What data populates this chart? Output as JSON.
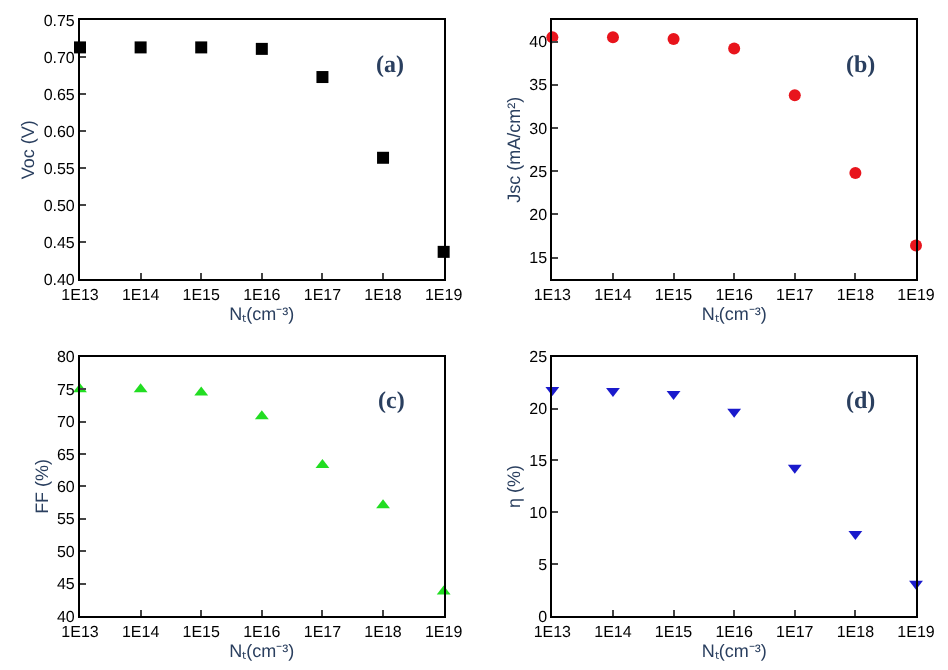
{
  "chart_data": [
    {
      "type": "scatter",
      "x": [
        10000000000000.0,
        100000000000000.0,
        1000000000000000.0,
        1e+16,
        1e+17,
        1e+18,
        1e+19
      ],
      "series": [
        {
          "color": "#000000",
          "values": [
            0.713,
            0.713,
            0.713,
            0.711,
            0.673,
            0.564,
            0.437
          ]
        }
      ],
      "marker": "square",
      "log": "x",
      "xlim": [
        10000000000000.0,
        1e+19
      ],
      "xticks": [
        {
          "value": 10000000000000.0,
          "label": "1E13"
        },
        {
          "value": 100000000000000.0,
          "label": "1E14"
        },
        {
          "value": 1000000000000000.0,
          "label": "1E15"
        },
        {
          "value": 1e+16,
          "label": "1E16"
        },
        {
          "value": 1e+17,
          "label": "1E17"
        },
        {
          "value": 1e+18,
          "label": "1E18"
        },
        {
          "value": 1e+19,
          "label": "1E19"
        }
      ],
      "ylim": [
        0.4,
        0.75
      ],
      "yticks": [
        {
          "value": 0.4,
          "label": "0.40"
        },
        {
          "value": 0.45,
          "label": "0.45"
        },
        {
          "value": 0.5,
          "label": "0.50"
        },
        {
          "value": 0.55,
          "label": "0.55"
        },
        {
          "value": 0.6,
          "label": "0.60"
        },
        {
          "value": 0.65,
          "label": "0.65"
        },
        {
          "value": 0.7,
          "label": "0.70"
        },
        {
          "value": 0.75,
          "label": "0.75"
        }
      ],
      "xlabel": "Nₜ(cm⁻³)",
      "ylabel": "Voc (V)",
      "annotations": [
        "(a)"
      ],
      "grid": false
    },
    {
      "type": "scatter",
      "x": [
        10000000000000.0,
        100000000000000.0,
        1000000000000000.0,
        1e+16,
        1e+17,
        1e+18,
        1e+19
      ],
      "series": [
        {
          "color": "#e8141c",
          "values": [
            40.5,
            40.5,
            40.3,
            39.2,
            33.8,
            24.8,
            16.4
          ]
        }
      ],
      "marker": "circle",
      "log": "x",
      "xlim": [
        10000000000000.0,
        1e+19
      ],
      "xticks": [
        {
          "value": 10000000000000.0,
          "label": "1E13"
        },
        {
          "value": 100000000000000.0,
          "label": "1E14"
        },
        {
          "value": 1000000000000000.0,
          "label": "1E15"
        },
        {
          "value": 1e+16,
          "label": "1E16"
        },
        {
          "value": 1e+17,
          "label": "1E17"
        },
        {
          "value": 1e+18,
          "label": "1E18"
        },
        {
          "value": 1e+19,
          "label": "1E19"
        }
      ],
      "ylim": [
        12.5,
        42.5
      ],
      "yticks": [
        15,
        20,
        25,
        30,
        35,
        40
      ],
      "xlabel": "Nₜ(cm⁻³)",
      "ylabel": "Jsc (mA/cm²)",
      "annotations": [
        "(b)"
      ],
      "grid": false
    },
    {
      "type": "scatter",
      "x": [
        10000000000000.0,
        100000000000000.0,
        1000000000000000.0,
        1e+16,
        1e+17,
        1e+18,
        1e+19
      ],
      "series": [
        {
          "color": "#22dd22",
          "values": [
            75,
            75,
            74.5,
            70.8,
            63.3,
            57.1,
            43.8
          ]
        }
      ],
      "marker": "triangle",
      "log": "x",
      "xlim": [
        10000000000000.0,
        1e+19
      ],
      "xticks": [
        {
          "value": 10000000000000.0,
          "label": "1E13"
        },
        {
          "value": 100000000000000.0,
          "label": "1E14"
        },
        {
          "value": 1000000000000000.0,
          "label": "1E15"
        },
        {
          "value": 1e+16,
          "label": "1E16"
        },
        {
          "value": 1e+17,
          "label": "1E17"
        },
        {
          "value": 1e+18,
          "label": "1E18"
        },
        {
          "value": 1e+19,
          "label": "1E19"
        }
      ],
      "ylim": [
        40,
        80
      ],
      "yticks": [
        40,
        45,
        50,
        55,
        60,
        65,
        70,
        75,
        80
      ],
      "xlabel": "Nₜ(cm⁻³)",
      "ylabel": "FF (%)",
      "annotations": [
        "(c)"
      ],
      "grid": false
    },
    {
      "type": "scatter",
      "x": [
        10000000000000.0,
        100000000000000.0,
        1000000000000000.0,
        1e+16,
        1e+17,
        1e+18,
        1e+19
      ],
      "series": [
        {
          "color": "#1a1acc",
          "values": [
            21.8,
            21.7,
            21.4,
            19.7,
            14.3,
            7.9,
            3.1
          ]
        }
      ],
      "marker": "triangle-down",
      "log": "x",
      "xlim": [
        10000000000000.0,
        1e+19
      ],
      "xticks": [
        {
          "value": 10000000000000.0,
          "label": "1E13"
        },
        {
          "value": 100000000000000.0,
          "label": "1E14"
        },
        {
          "value": 1000000000000000.0,
          "label": "1E15"
        },
        {
          "value": 1e+16,
          "label": "1E16"
        },
        {
          "value": 1e+17,
          "label": "1E17"
        },
        {
          "value": 1e+18,
          "label": "1E18"
        },
        {
          "value": 1e+19,
          "label": "1E19"
        }
      ],
      "ylim": [
        0,
        25
      ],
      "yticks": [
        0,
        5,
        10,
        15,
        20,
        25
      ],
      "xlabel": "Nₜ(cm⁻³)",
      "ylabel": "η (%)",
      "annotations": [
        "(d)"
      ],
      "grid": false
    }
  ]
}
